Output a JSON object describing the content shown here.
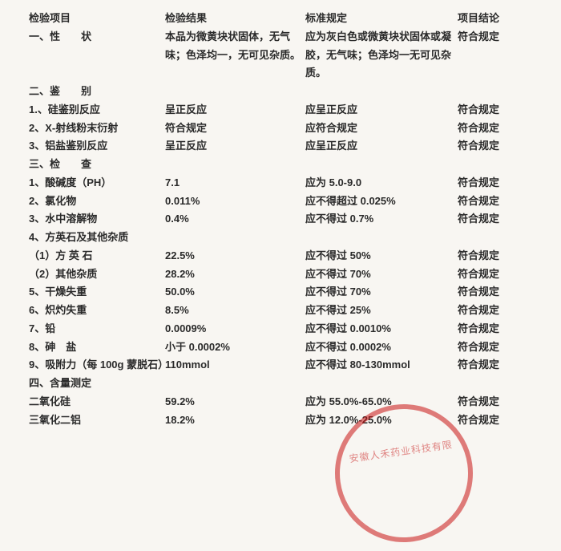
{
  "headers": {
    "item": "检验项目",
    "result": "检验结果",
    "standard": "标准规定",
    "conclusion": "项目结论"
  },
  "rows": [
    {
      "item": "一、性　　状",
      "result": "本品为微黄块状固体，无气味；色泽均一，无可见杂质。",
      "standard": "应为灰白色或微黄块状固体或凝胶，无气味；色泽均一无可见杂质。",
      "conclusion": "符合规定"
    },
    {
      "item": "二、鉴　　别",
      "result": "",
      "standard": "",
      "conclusion": ""
    },
    {
      "item": "1.、硅鉴别反应",
      "result": "呈正反应",
      "standard": "应呈正反应",
      "conclusion": "符合规定"
    },
    {
      "item": "2、X-射线粉末衍射",
      "result": "符合规定",
      "standard": "应符合规定",
      "conclusion": "符合规定"
    },
    {
      "item": "3、铝盐鉴别反应",
      "result": "呈正反应",
      "standard": "应呈正反应",
      "conclusion": "符合规定"
    },
    {
      "item": "三、检　　查",
      "result": "",
      "standard": "",
      "conclusion": ""
    },
    {
      "item": "1、酸碱度（PH）",
      "result": "7.1",
      "standard": "应为 5.0-9.0",
      "conclusion": "符合规定"
    },
    {
      "item": "2、氯化物",
      "result": "0.011%",
      "standard": "应不得超过 0.025%",
      "conclusion": "符合规定"
    },
    {
      "item": "3、水中溶解物",
      "result": "0.4%",
      "standard": "应不得过 0.7%",
      "conclusion": "符合规定"
    },
    {
      "item": "4、方英石及其他杂质",
      "result": "",
      "standard": "",
      "conclusion": ""
    },
    {
      "item": "（1）方 英 石",
      "result": "22.5%",
      "standard": "应不得过 50%",
      "conclusion": "符合规定"
    },
    {
      "item": "（2）其他杂质",
      "result": "28.2%",
      "standard": "应不得过 70%",
      "conclusion": "符合规定"
    },
    {
      "item": "5、干燥失重",
      "result": "50.0%",
      "standard": "应不得过 70%",
      "conclusion": "符合规定"
    },
    {
      "item": "6、炽灼失重",
      "result": "8.5%",
      "standard": "应不得过 25%",
      "conclusion": "符合规定"
    },
    {
      "item": "7、铅",
      "result": "0.0009%",
      "standard": "应不得过 0.0010%",
      "conclusion": "符合规定"
    },
    {
      "item": "8、砷　盐",
      "result": "小于 0.0002%",
      "standard": "应不得过 0.0002%",
      "conclusion": "符合规定"
    },
    {
      "item": "9、吸附力（每 100g 蒙脱石）",
      "result": "110mmol",
      "standard": "应不得过 80-130mmol",
      "conclusion": "符合规定"
    },
    {
      "item": "四、含量测定",
      "result": "",
      "standard": "",
      "conclusion": ""
    },
    {
      "item": "二氧化硅",
      "result": "59.2%",
      "standard": "应为 55.0%-65.0%",
      "conclusion": "符合规定"
    },
    {
      "item": "三氧化二铝",
      "result": "18.2%",
      "standard": "应为 12.0%-25.0%",
      "conclusion": "符合规定"
    }
  ],
  "stamp_text": "安徽人禾药业科技有限"
}
